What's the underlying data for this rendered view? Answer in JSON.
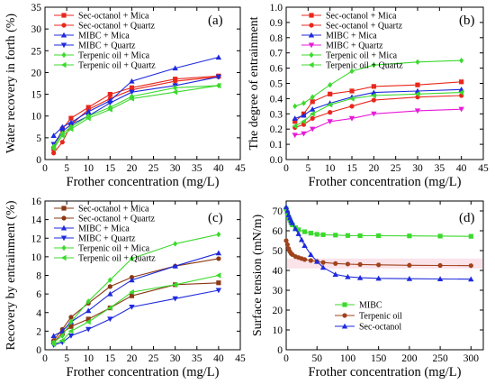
{
  "chart_data": [
    {
      "id": "a",
      "type": "line",
      "panel_label": "(a)",
      "xlabel": "Frother concentration (mg/L)",
      "ylabel": "Water recovery in forth (%)",
      "xlim": [
        0,
        45
      ],
      "ylim": [
        0,
        35
      ],
      "xticks": [
        0,
        5,
        10,
        15,
        20,
        25,
        30,
        35,
        40,
        45
      ],
      "yticks": [
        0,
        5,
        10,
        15,
        20,
        25,
        30,
        35
      ],
      "legend_position": "top-left",
      "x": [
        2,
        4,
        6,
        10,
        15,
        20,
        30,
        40
      ],
      "series": [
        {
          "name": "Sec-octanol + Mica",
          "color": "#e8271c",
          "marker": "square",
          "values": [
            2.5,
            7.0,
            9.5,
            12.0,
            15.0,
            16.5,
            18.5,
            19.2
          ]
        },
        {
          "name": "Sec-octanol + Quartz",
          "color": "#e8271c",
          "marker": "circle",
          "values": [
            1.5,
            4.0,
            8.0,
            11.5,
            14.0,
            16.0,
            18.0,
            19.0
          ]
        },
        {
          "name": "MIBC + Mica",
          "color": "#1e2adb",
          "marker": "triangle-up",
          "values": [
            5.5,
            7.5,
            8.5,
            11.0,
            13.5,
            18.0,
            21.0,
            23.5
          ]
        },
        {
          "name": "MIBC + Quartz",
          "color": "#1e2adb",
          "marker": "triangle-down",
          "values": [
            3.5,
            6.5,
            8.0,
            10.0,
            13.0,
            15.5,
            17.0,
            19.0
          ]
        },
        {
          "name": "Terpenic oil + Mica",
          "color": "#3cd92e",
          "marker": "diamond",
          "values": [
            3.0,
            6.0,
            7.5,
            10.0,
            12.0,
            14.5,
            16.5,
            17.0
          ]
        },
        {
          "name": "Terpenic oil + Quartz",
          "color": "#3cd92e",
          "marker": "triangle-left",
          "values": [
            2.5,
            5.5,
            7.0,
            9.5,
            11.5,
            14.0,
            15.5,
            17.0
          ]
        }
      ]
    },
    {
      "id": "b",
      "type": "line",
      "panel_label": "(b)",
      "xlabel": "Frother concentration (mg/L)",
      "ylabel": "The degree of entrainment",
      "xlim": [
        0,
        45
      ],
      "ylim": [
        0,
        1.0
      ],
      "xticks": [
        0,
        5,
        10,
        15,
        20,
        25,
        30,
        35,
        40,
        45
      ],
      "yticks": [
        0.0,
        0.1,
        0.2,
        0.3,
        0.4,
        0.5,
        0.6,
        0.7,
        0.8,
        0.9,
        1.0
      ],
      "legend_position": "top-left",
      "x": [
        2,
        4,
        6,
        10,
        15,
        20,
        30,
        40
      ],
      "series": [
        {
          "name": "Sec-octanol + Mica",
          "color": "#e8271c",
          "marker": "square",
          "values": [
            0.25,
            0.3,
            0.38,
            0.43,
            0.45,
            0.48,
            0.49,
            0.51
          ]
        },
        {
          "name": "Sec-octanol + Quartz",
          "color": "#e8271c",
          "marker": "circle",
          "values": [
            0.21,
            0.23,
            0.27,
            0.31,
            0.35,
            0.39,
            0.41,
            0.42
          ]
        },
        {
          "name": "MIBC + Mica",
          "color": "#1e2adb",
          "marker": "triangle-up",
          "values": [
            0.27,
            0.29,
            0.33,
            0.37,
            0.41,
            0.44,
            0.45,
            0.46
          ]
        },
        {
          "name": "MIBC + Quartz",
          "color": "#e81ad8",
          "marker": "triangle-down",
          "values": [
            0.16,
            0.17,
            0.2,
            0.25,
            0.27,
            0.3,
            0.32,
            0.33
          ]
        },
        {
          "name": "Terpenic oil + Mica",
          "color": "#3cd92e",
          "marker": "diamond",
          "values": [
            0.35,
            0.37,
            0.41,
            0.49,
            0.58,
            0.62,
            0.64,
            0.65
          ]
        },
        {
          "name": "Terpenic oil + Quartz",
          "color": "#3cd92e",
          "marker": "triangle-left",
          "values": [
            0.22,
            0.25,
            0.3,
            0.36,
            0.4,
            0.42,
            0.43,
            0.44
          ]
        }
      ]
    },
    {
      "id": "c",
      "type": "line",
      "panel_label": "(c)",
      "xlabel": "Frother concentration (mg/L)",
      "ylabel": "Recovery by entrainment (%)",
      "xlim": [
        0,
        45
      ],
      "ylim": [
        0,
        16
      ],
      "xticks": [
        0,
        5,
        10,
        15,
        20,
        25,
        30,
        35,
        40,
        45
      ],
      "yticks": [
        0,
        2,
        4,
        6,
        8,
        10,
        12,
        14,
        16
      ],
      "legend_position": "top-left",
      "x": [
        2,
        4,
        6,
        10,
        15,
        20,
        30,
        40
      ],
      "series": [
        {
          "name": "Sec-octanol + Mica",
          "color": "#8b3a14",
          "marker": "square",
          "values": [
            0.8,
            1.8,
            2.5,
            3.3,
            4.5,
            5.8,
            7.0,
            7.2
          ]
        },
        {
          "name": "Sec-octanol + Quartz",
          "color": "#8b3a14",
          "marker": "circle",
          "values": [
            1.0,
            2.2,
            3.5,
            5.0,
            6.8,
            7.8,
            9.0,
            9.8
          ]
        },
        {
          "name": "MIBC + Mica",
          "color": "#1e2adb",
          "marker": "triangle-up",
          "values": [
            1.5,
            2.0,
            3.0,
            4.2,
            6.0,
            7.5,
            9.0,
            10.4
          ]
        },
        {
          "name": "MIBC + Quartz",
          "color": "#1e2adb",
          "marker": "triangle-down",
          "values": [
            0.5,
            0.8,
            1.5,
            2.2,
            3.3,
            4.6,
            5.5,
            6.4
          ]
        },
        {
          "name": "Terpenic oil + Mica",
          "color": "#3cd92e",
          "marker": "diamond",
          "values": [
            0.8,
            1.5,
            3.0,
            5.2,
            7.5,
            9.8,
            11.4,
            12.4
          ]
        },
        {
          "name": "Terpenic oil + Quartz",
          "color": "#3cd92e",
          "marker": "triangle-left",
          "values": [
            0.6,
            1.0,
            2.0,
            3.0,
            4.5,
            6.2,
            7.0,
            8.0
          ]
        }
      ]
    },
    {
      "id": "d",
      "type": "line",
      "panel_label": "(d)",
      "xlabel": "Frother concentration (mg/L)",
      "ylabel": "Surface tension (mN/m)",
      "xlim": [
        0,
        320
      ],
      "ylim": [
        0,
        75
      ],
      "xticks": [
        0,
        50,
        100,
        150,
        200,
        250,
        300
      ],
      "yticks": [
        0,
        10,
        20,
        30,
        40,
        50,
        60,
        70
      ],
      "legend_position": "bottom-left",
      "series": [
        {
          "name": "MIBC",
          "color": "#3cd92e",
          "marker": "square",
          "x": [
            0,
            2,
            4,
            6,
            8,
            10,
            15,
            20,
            30,
            40,
            50,
            60,
            80,
            100,
            120,
            150,
            200,
            250,
            300
          ],
          "values": [
            71,
            69,
            67,
            65.5,
            64,
            63,
            61.5,
            60.5,
            59.5,
            58.8,
            58.2,
            58,
            57.8,
            57.6,
            57.5,
            57.5,
            57.4,
            57.3,
            57.2
          ]
        },
        {
          "name": "Terpenic oil",
          "color": "#a0431c",
          "marker": "circle",
          "x": [
            0,
            2,
            4,
            6,
            8,
            10,
            15,
            20,
            25,
            30,
            40,
            50,
            60,
            80,
            100,
            120,
            150,
            200,
            250,
            300
          ],
          "values": [
            55,
            53,
            51,
            49.5,
            48.5,
            48,
            47,
            46.5,
            46,
            45.5,
            45,
            44.5,
            44,
            43.5,
            43.2,
            43,
            42.8,
            42.6,
            42.5,
            42.4
          ]
        },
        {
          "name": "Sec-octanol",
          "color": "#1e2adb",
          "marker": "triangle-up",
          "x": [
            0,
            2,
            4,
            6,
            8,
            10,
            15,
            20,
            25,
            30,
            40,
            50,
            60,
            80,
            100,
            120,
            150,
            200,
            250,
            300
          ],
          "values": [
            72,
            70,
            68,
            66.5,
            65,
            64,
            61,
            58.5,
            55.5,
            52.5,
            48,
            44.5,
            41.5,
            38,
            36.8,
            36.3,
            36,
            35.8,
            35.7,
            35.6
          ]
        }
      ]
    }
  ]
}
